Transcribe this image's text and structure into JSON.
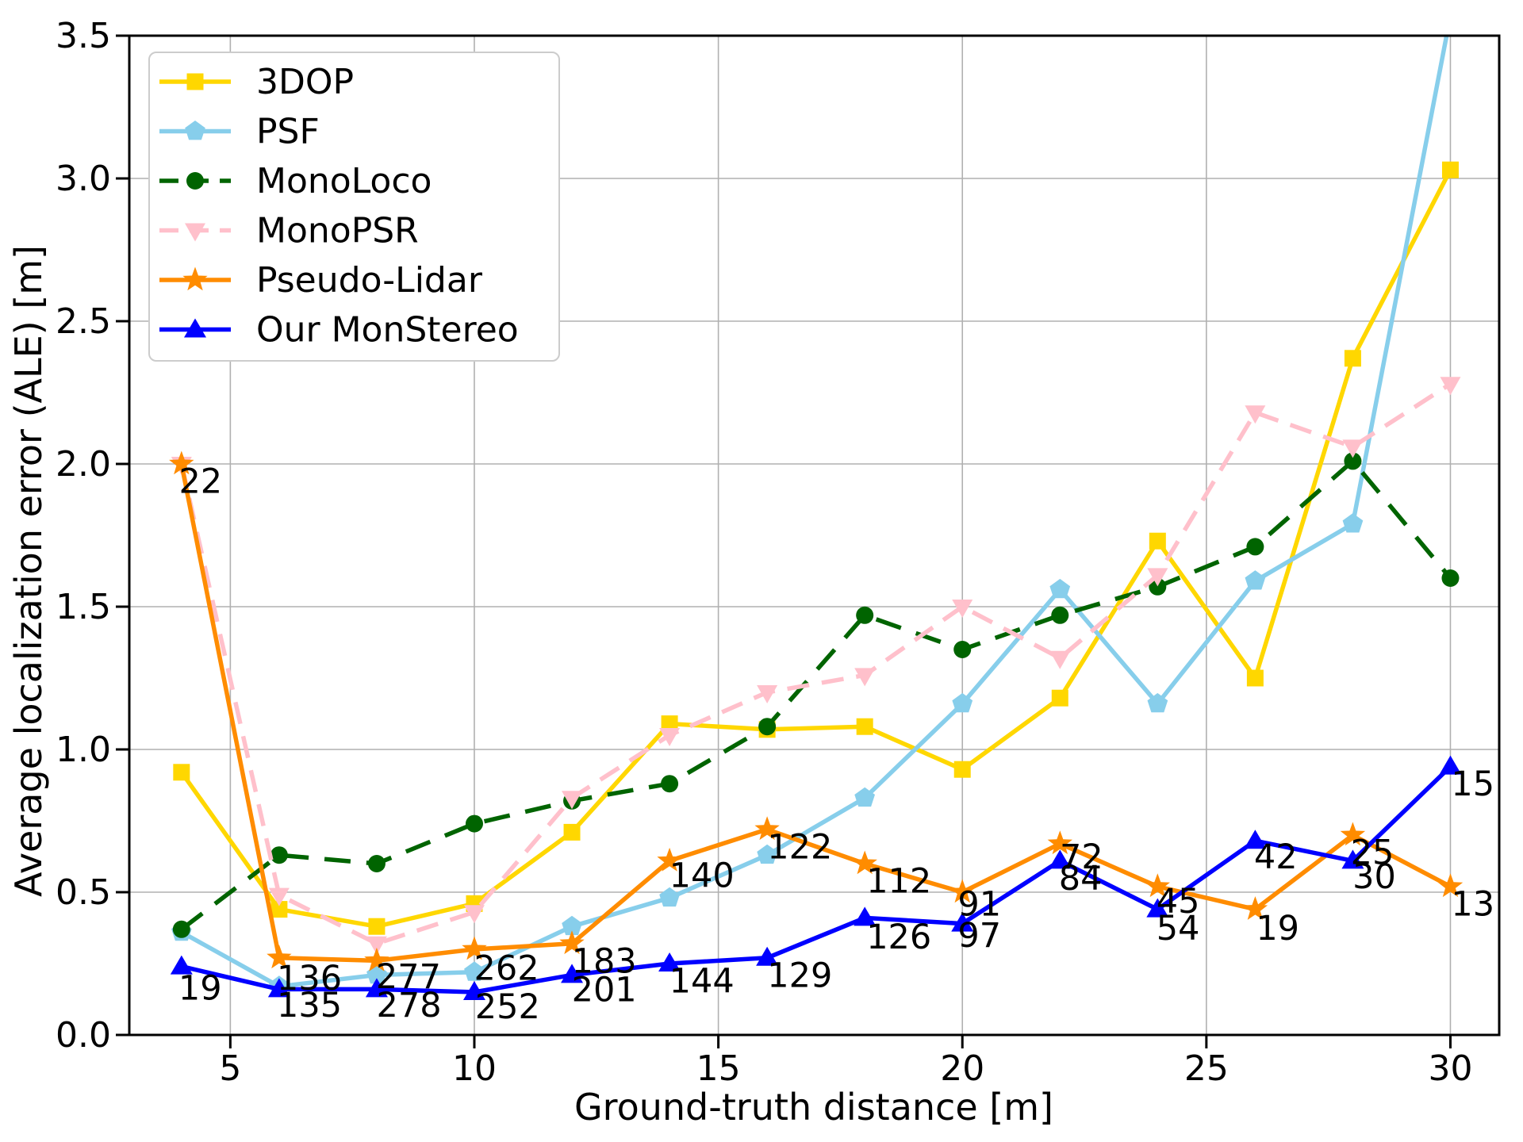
{
  "chart_data": {
    "type": "line",
    "title": "",
    "xlabel": "Ground-truth distance [m]",
    "ylabel": "Average localization error (ALE) [m]",
    "xlim": [
      2.93,
      31.0
    ],
    "ylim": [
      0.0,
      3.5
    ],
    "xticks": [
      5,
      10,
      15,
      20,
      25,
      30
    ],
    "yticks": [
      0.0,
      0.5,
      1.0,
      1.5,
      2.0,
      2.5,
      3.0,
      3.5
    ],
    "grid": true,
    "grid_color": "#b0b0b0",
    "axis_color": "#000000",
    "legend_position": "upper-left",
    "x": [
      4,
      6,
      8,
      10,
      12,
      14,
      16,
      18,
      20,
      22,
      24,
      26,
      28,
      30
    ],
    "series": [
      {
        "name": "3DOP",
        "color": "#FFD700",
        "marker": "square",
        "dash": "solid",
        "values": [
          0.92,
          0.44,
          0.38,
          0.46,
          0.71,
          1.09,
          1.07,
          1.08,
          0.93,
          1.18,
          1.73,
          1.25,
          2.37,
          3.03
        ]
      },
      {
        "name": "PSF",
        "color": "#87CEEB",
        "marker": "pentagon",
        "dash": "solid",
        "values": [
          0.36,
          0.17,
          0.21,
          0.22,
          0.38,
          0.48,
          0.63,
          0.83,
          1.16,
          1.56,
          1.16,
          1.59,
          1.79,
          3.57
        ]
      },
      {
        "name": "MonoLoco",
        "color": "#006400",
        "marker": "circle",
        "dash": "33 20",
        "values": [
          0.37,
          0.63,
          0.6,
          0.74,
          0.82,
          0.88,
          1.08,
          1.47,
          1.35,
          1.47,
          1.57,
          1.71,
          2.01,
          1.6
        ]
      },
      {
        "name": "MonoPSR",
        "color": "#FFC0CB",
        "marker": "triangle-down",
        "dash": "28 16",
        "values": [
          2.0,
          0.49,
          0.32,
          0.43,
          0.83,
          1.05,
          1.2,
          1.26,
          1.5,
          1.32,
          1.61,
          2.18,
          2.06,
          2.28
        ]
      },
      {
        "name": "Pseudo-Lidar",
        "color": "#FF8C00",
        "marker": "star",
        "dash": "solid",
        "values": [
          2.0,
          0.27,
          0.26,
          0.3,
          0.32,
          0.61,
          0.72,
          0.6,
          0.5,
          0.67,
          0.52,
          0.44,
          0.7,
          0.52
        ]
      },
      {
        "name": "Our MonStereo",
        "color": "#0000FF",
        "marker": "triangle-up",
        "dash": "solid",
        "values": [
          0.24,
          0.16,
          0.16,
          0.15,
          0.21,
          0.25,
          0.27,
          0.41,
          0.39,
          0.61,
          0.44,
          0.68,
          0.61,
          0.94
        ]
      }
    ],
    "annotations": [
      {
        "text": "22",
        "x": 4.39,
        "y": 1.94
      },
      {
        "text": "19",
        "x": 4.38,
        "y": 0.165
      },
      {
        "text": "136",
        "x": 6.62,
        "y": 0.2
      },
      {
        "text": "135",
        "x": 6.62,
        "y": 0.105
      },
      {
        "text": "277",
        "x": 8.65,
        "y": 0.205
      },
      {
        "text": "278",
        "x": 8.66,
        "y": 0.105
      },
      {
        "text": "262",
        "x": 10.66,
        "y": 0.235
      },
      {
        "text": "252",
        "x": 10.68,
        "y": 0.1
      },
      {
        "text": "183",
        "x": 12.66,
        "y": 0.26
      },
      {
        "text": "201",
        "x": 12.66,
        "y": 0.16
      },
      {
        "text": "140",
        "x": 14.66,
        "y": 0.56
      },
      {
        "text": "144",
        "x": 14.66,
        "y": 0.19
      },
      {
        "text": "122",
        "x": 16.67,
        "y": 0.66
      },
      {
        "text": "129",
        "x": 16.67,
        "y": 0.21
      },
      {
        "text": "112",
        "x": 18.7,
        "y": 0.54
      },
      {
        "text": "126",
        "x": 18.7,
        "y": 0.345
      },
      {
        "text": "91",
        "x": 20.35,
        "y": 0.46
      },
      {
        "text": "97",
        "x": 20.35,
        "y": 0.35
      },
      {
        "text": "72",
        "x": 22.44,
        "y": 0.625
      },
      {
        "text": "84",
        "x": 22.42,
        "y": 0.55
      },
      {
        "text": "45",
        "x": 24.42,
        "y": 0.47
      },
      {
        "text": "54",
        "x": 24.42,
        "y": 0.375
      },
      {
        "text": "42",
        "x": 26.42,
        "y": 0.625
      },
      {
        "text": "19",
        "x": 26.46,
        "y": 0.375
      },
      {
        "text": "25",
        "x": 28.4,
        "y": 0.64
      },
      {
        "text": "30",
        "x": 28.44,
        "y": 0.555
      },
      {
        "text": "15",
        "x": 30.46,
        "y": 0.88
      },
      {
        "text": "13",
        "x": 30.46,
        "y": 0.46
      }
    ]
  }
}
